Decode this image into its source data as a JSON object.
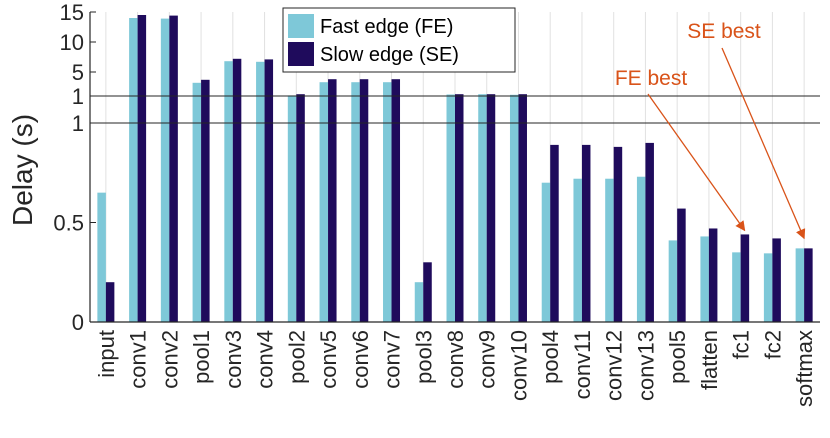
{
  "chart_data": {
    "type": "bar",
    "ylabel": "Delay (s)",
    "categories": [
      "input",
      "conv1",
      "conv2",
      "pool1",
      "conv3",
      "conv4",
      "pool2",
      "conv5",
      "conv6",
      "conv7",
      "pool3",
      "conv8",
      "conv9",
      "conv10",
      "pool4",
      "conv11",
      "conv12",
      "conv13",
      "pool5",
      "flatten",
      "fc1",
      "fc2",
      "softmax"
    ],
    "series": [
      {
        "name": "Fast edge (FE)",
        "color": "#7ec8d8",
        "values": [
          0.65,
          14.0,
          13.9,
          3.2,
          6.8,
          6.7,
          1.1,
          3.3,
          3.3,
          3.3,
          0.2,
          1.25,
          1.3,
          1.2,
          0.7,
          0.72,
          0.72,
          0.73,
          0.41,
          0.43,
          0.35,
          0.345,
          0.37
        ]
      },
      {
        "name": "Slow edge (SE)",
        "color": "#1f0b5c",
        "values": [
          0.2,
          14.5,
          14.4,
          3.7,
          7.2,
          7.1,
          1.3,
          3.8,
          3.8,
          3.8,
          0.3,
          1.3,
          1.3,
          1.3,
          0.89,
          0.89,
          0.88,
          0.9,
          0.57,
          0.47,
          0.44,
          0.42,
          0.37
        ]
      }
    ],
    "axis_segments": [
      {
        "ylim": [
          0,
          1
        ],
        "ticks": [
          "0",
          "0.5",
          "1"
        ]
      },
      {
        "ylim": [
          1,
          15
        ],
        "ticks": [
          "1",
          "5",
          "10",
          "15"
        ]
      }
    ],
    "grid": "x-only",
    "legend_position": "top-center",
    "annotations": [
      {
        "text": "FE best",
        "target": "fc1",
        "color": "#d95319"
      },
      {
        "text": "SE best",
        "target": "softmax",
        "color": "#d95319"
      }
    ]
  }
}
